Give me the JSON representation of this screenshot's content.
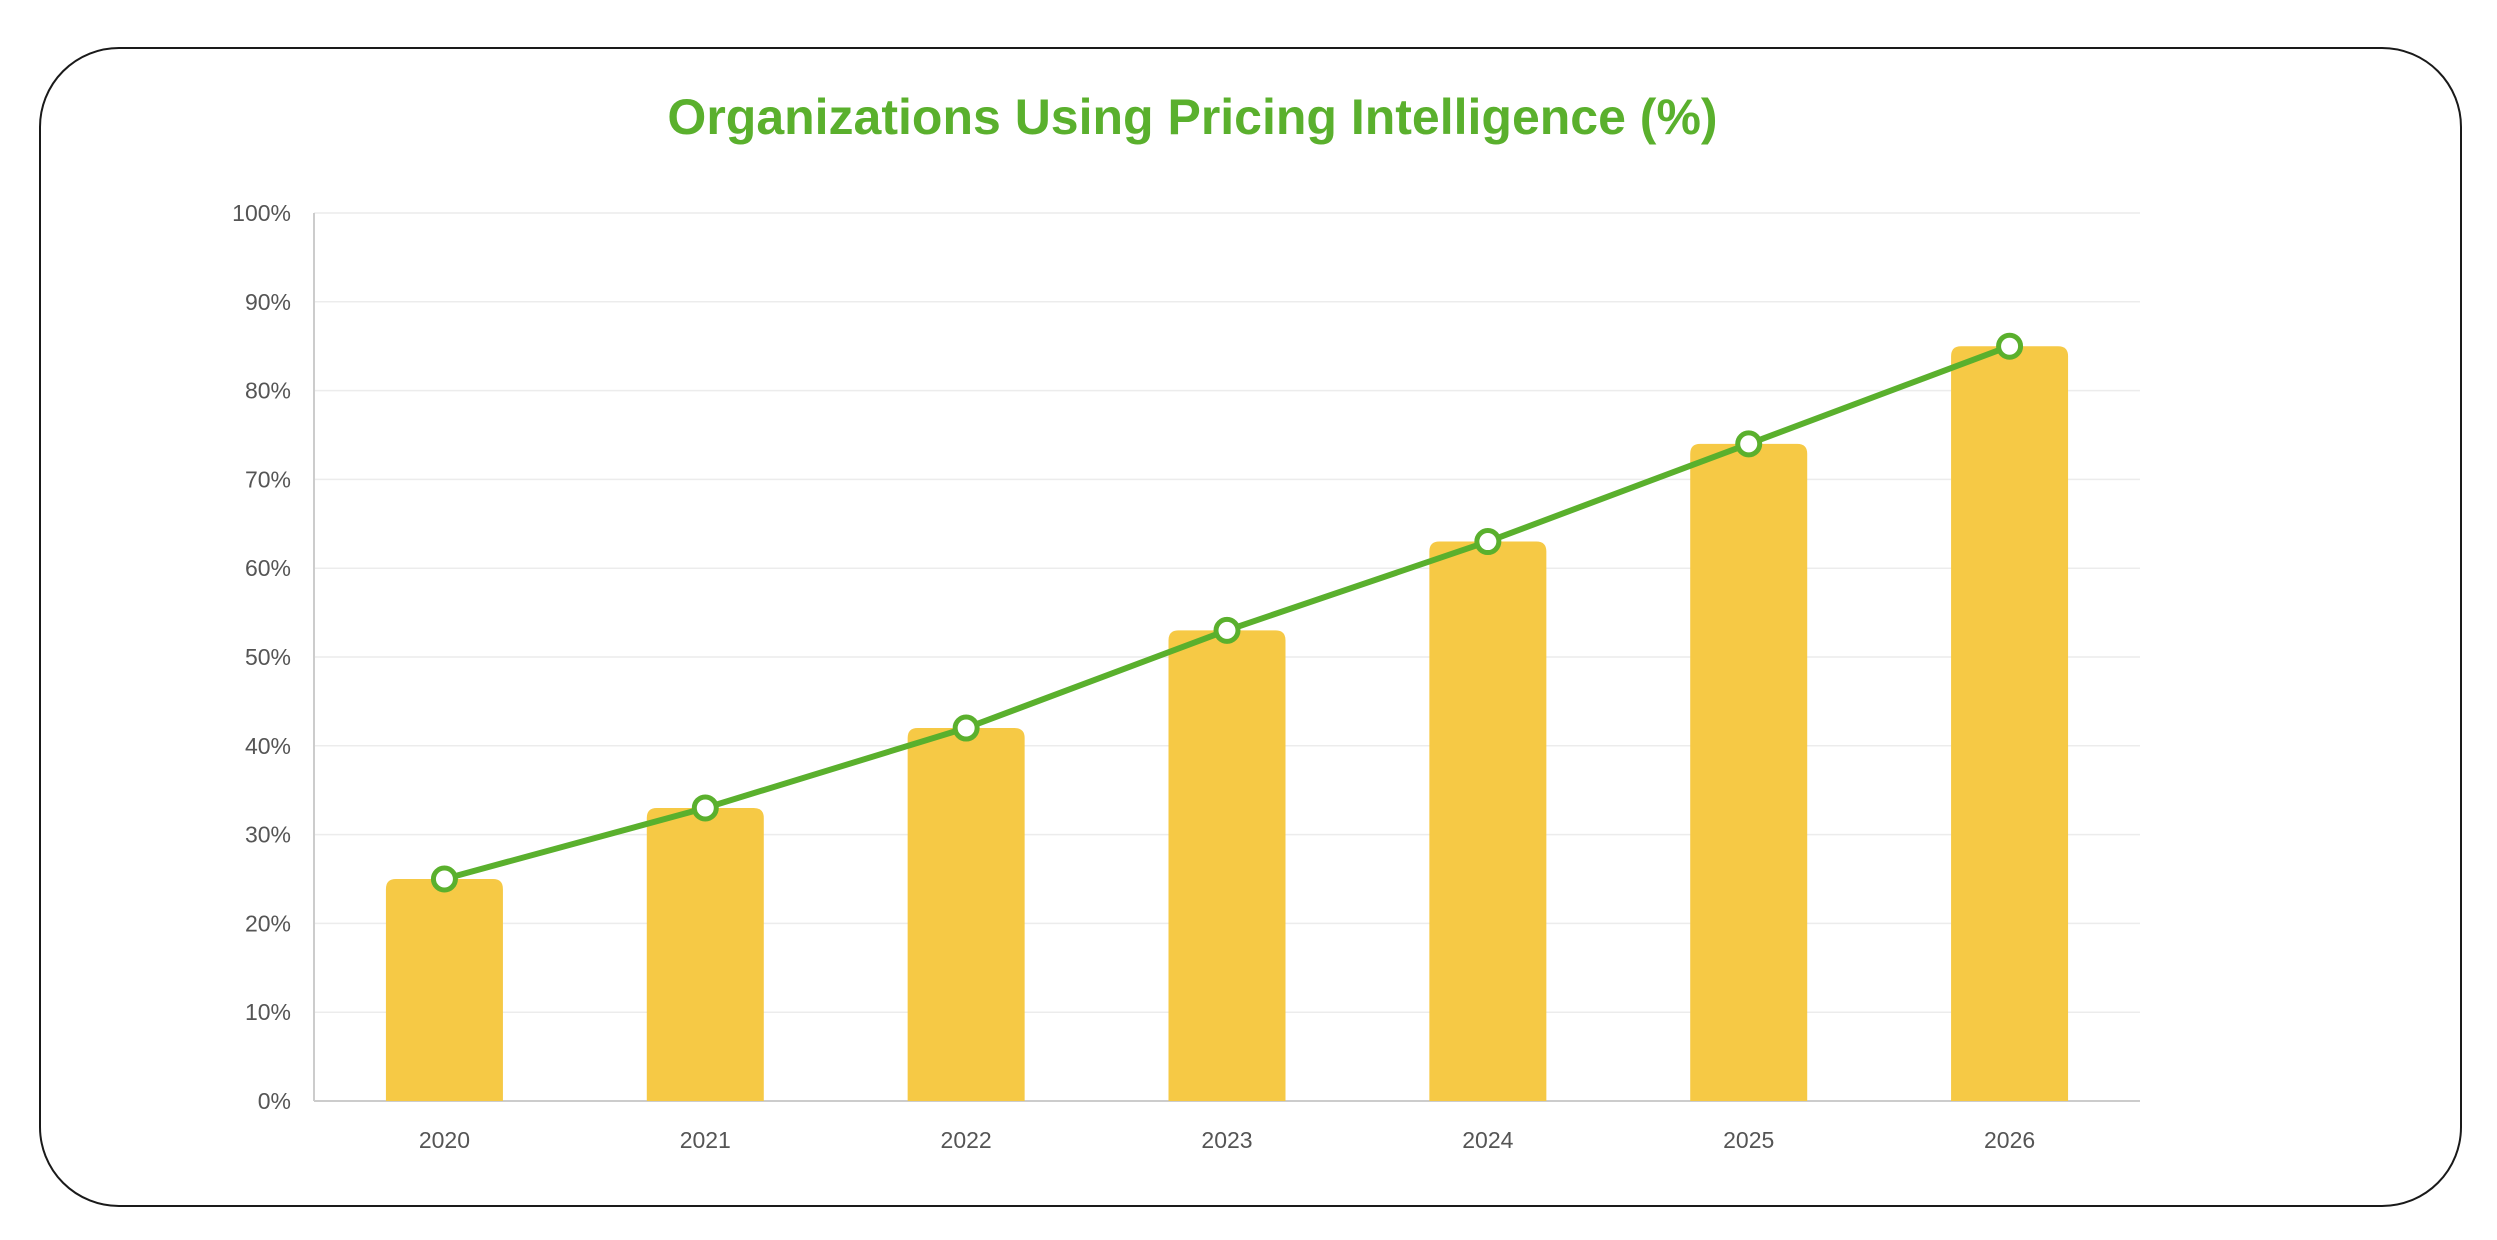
{
  "colors": {
    "bar": "#f6c945",
    "line": "#5ab02d",
    "title": "#5ab02d",
    "grid": "#ececec",
    "axis": "#cccccc",
    "tick_text": "#555555"
  },
  "chart_data": {
    "type": "bar",
    "title": "Organizations Using Pricing Intelligence (%)",
    "categories": [
      "2020",
      "2021",
      "2022",
      "2023",
      "2024",
      "2025",
      "2026"
    ],
    "series": [
      {
        "type": "bar",
        "values": [
          25,
          33,
          42,
          53,
          63,
          74,
          85
        ]
      },
      {
        "type": "line",
        "values": [
          25,
          33,
          42,
          53,
          63,
          74,
          85
        ]
      }
    ],
    "ylim": [
      0,
      100
    ],
    "yticks": [
      "0%",
      "10%",
      "20%",
      "30%",
      "40%",
      "50%",
      "60%",
      "70%",
      "80%",
      "90%",
      "100%"
    ],
    "xlabel": "",
    "ylabel": "",
    "grid": true,
    "legend": "none"
  }
}
